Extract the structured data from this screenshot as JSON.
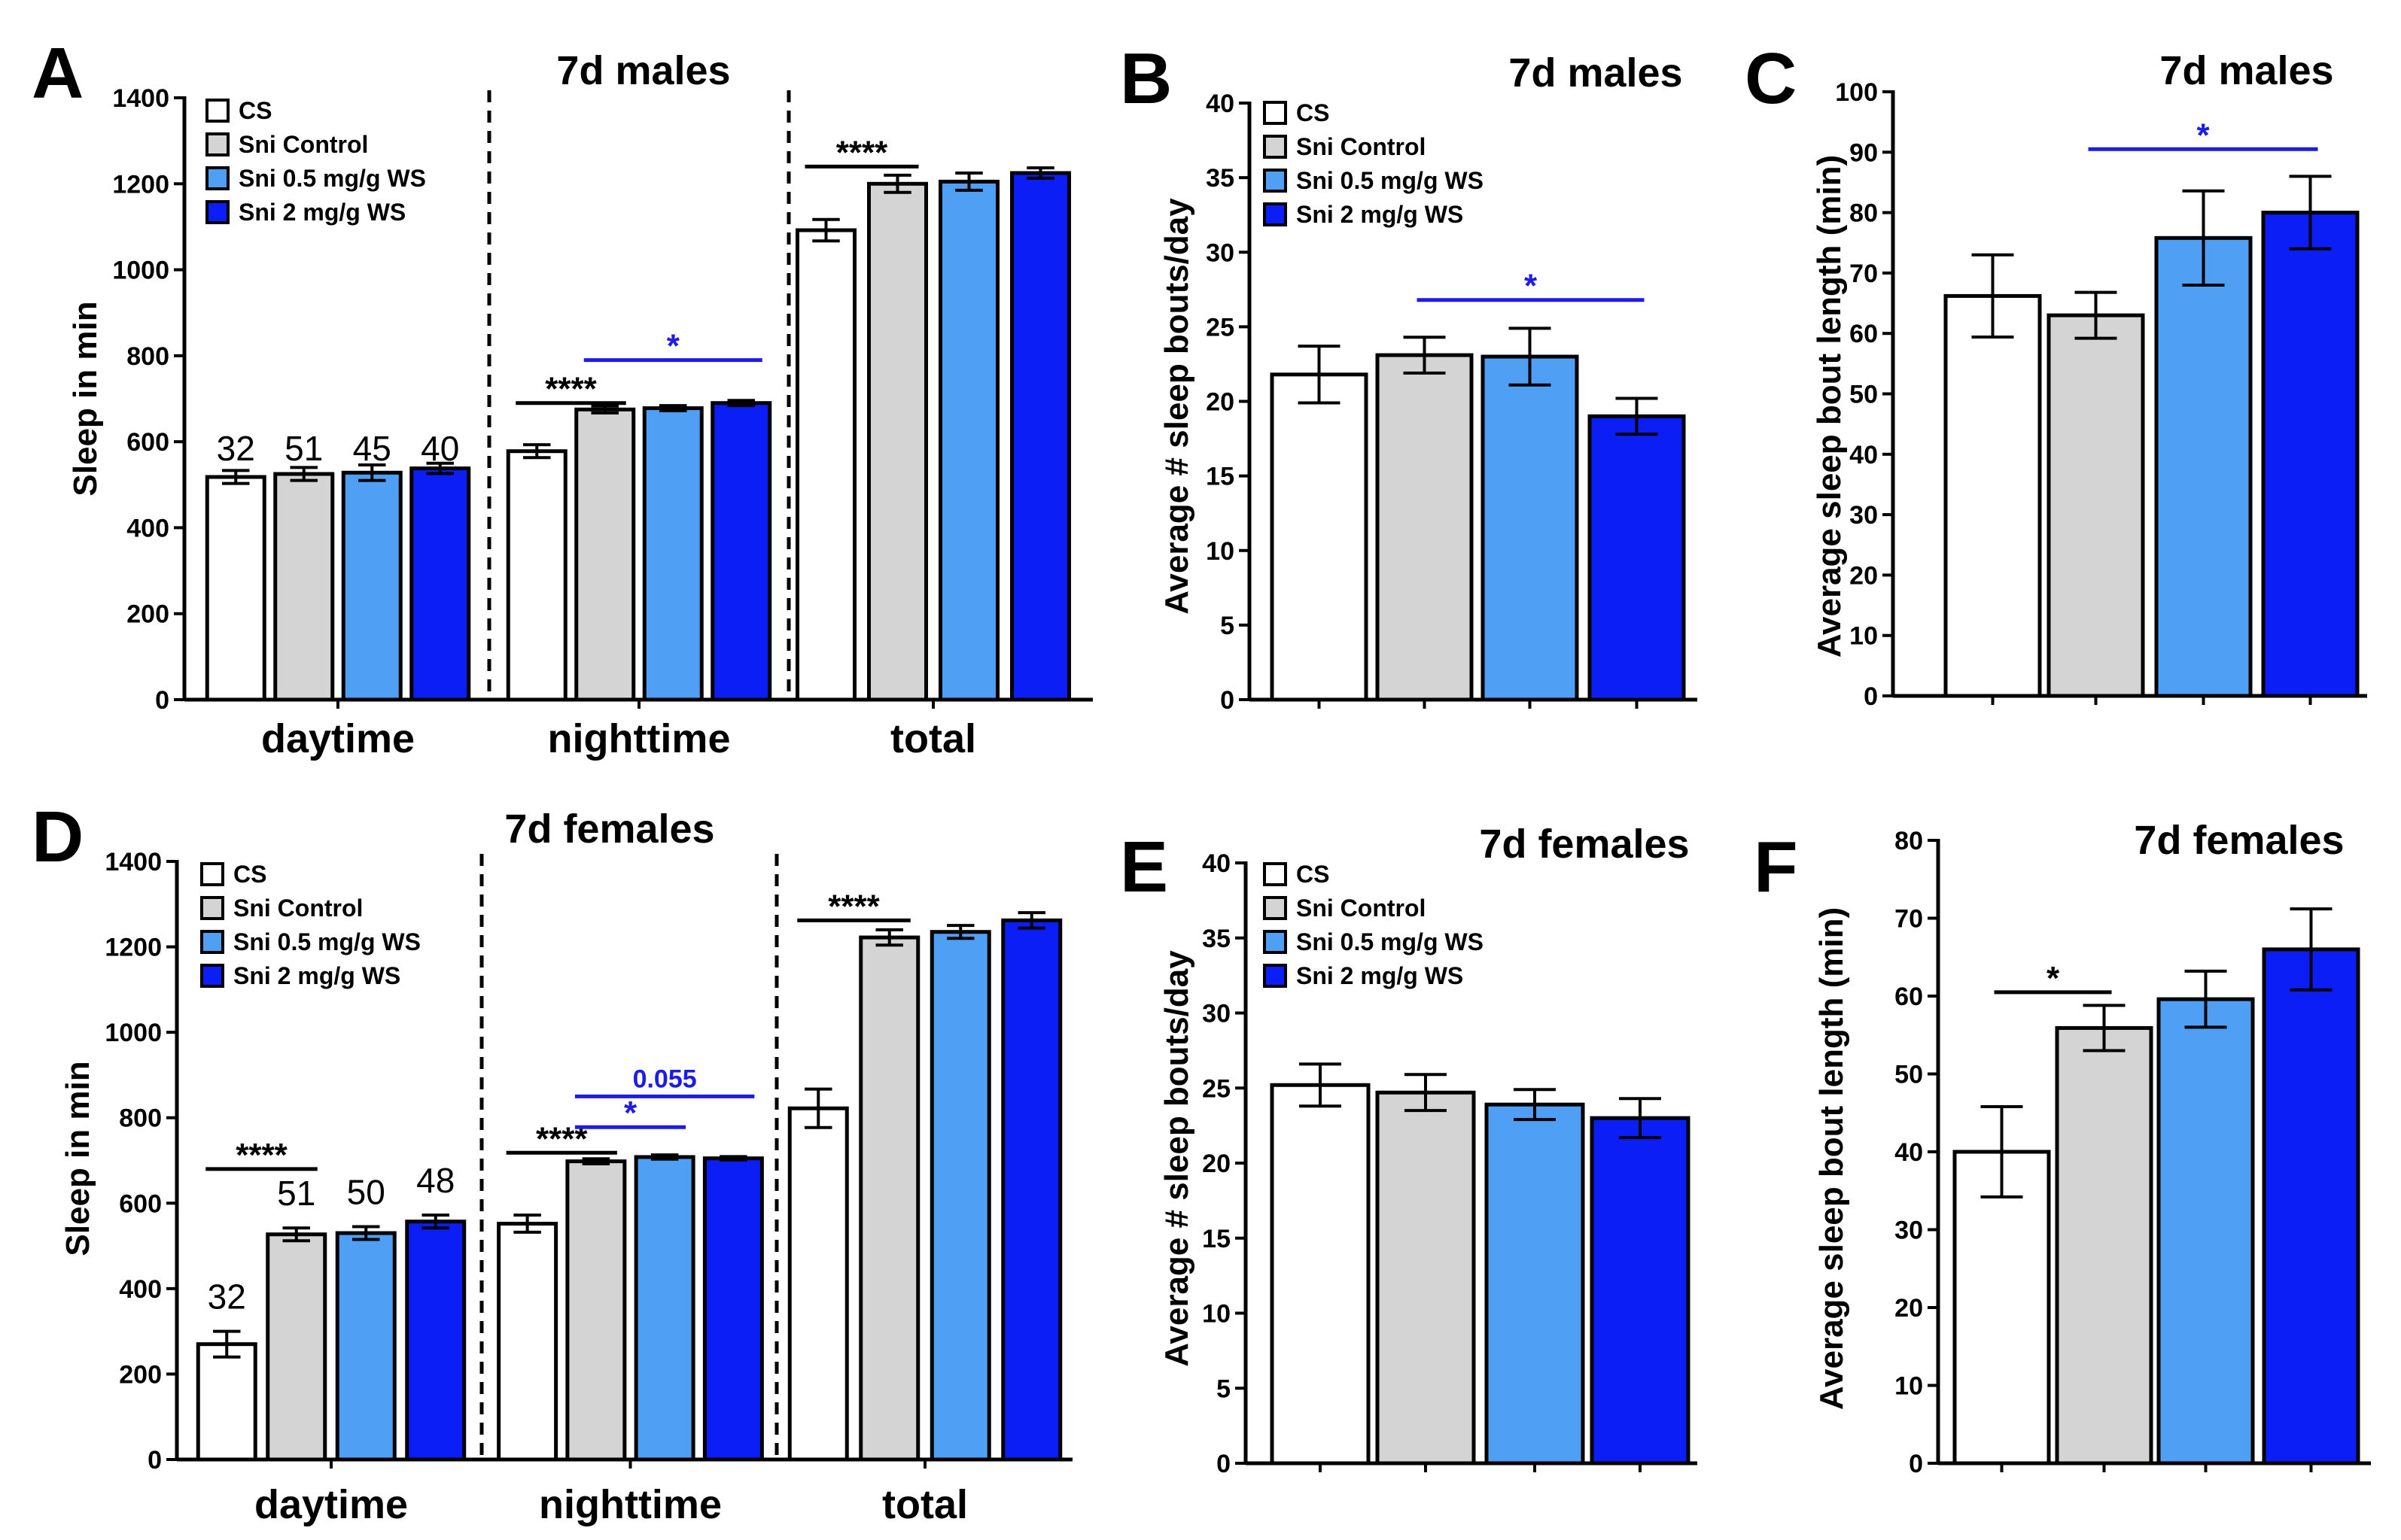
{
  "colors": {
    "CS": "#ffffff",
    "Sni Control": "#d4d4d4",
    "Sni 0.5 mg/g WS": "#4f9ff5",
    "Sni 2 mg/g WS": "#0b1ef5",
    "sig_black": "#000000",
    "sig_blue": "#1c1ce6"
  },
  "chart_data": [
    {
      "panel": "A",
      "type": "bar",
      "title": "7d males",
      "ylabel": "Sleep in min",
      "xlabel": "",
      "ylim": [
        0,
        1400
      ],
      "yticks": [
        "0",
        "200",
        "400",
        "600",
        "800",
        "1000",
        "1200",
        "1400"
      ],
      "legend": [
        "CS",
        "Sni Control",
        "Sni 0.5 mg/g WS",
        "Sni 2 mg/g WS"
      ],
      "categories": [
        "daytime",
        "nighttime",
        "total"
      ],
      "series": [
        {
          "name": "CS",
          "values": [
            518,
            578,
            1092
          ],
          "errors": [
            15,
            15,
            25
          ]
        },
        {
          "name": "Sni Control",
          "values": [
            525,
            675,
            1200
          ],
          "errors": [
            15,
            8,
            20
          ]
        },
        {
          "name": "Sni 0.5 mg/g WS",
          "values": [
            528,
            678,
            1205
          ],
          "errors": [
            18,
            6,
            20
          ]
        },
        {
          "name": "Sni 2 mg/g WS",
          "values": [
            538,
            690,
            1225
          ],
          "errors": [
            12,
            6,
            12
          ]
        }
      ],
      "n_labels": [
        "32",
        "51",
        "45",
        "40"
      ],
      "significance": [
        {
          "label": "****",
          "group": 1,
          "from": 0,
          "to": 1,
          "y": 690,
          "color": "black"
        },
        {
          "label": "*",
          "group": 1,
          "from": 1,
          "to": 3,
          "y": 790,
          "color": "blue"
        },
        {
          "label": "****",
          "group": 2,
          "from": 0,
          "to": 1,
          "y": 1240,
          "color": "black"
        }
      ]
    },
    {
      "panel": "B",
      "type": "bar",
      "title": "7d males",
      "ylabel": "Average # sleep bouts/day",
      "ylim": [
        0,
        40
      ],
      "yticks": [
        "0",
        "5",
        "10",
        "15",
        "20",
        "25",
        "30",
        "35",
        "40"
      ],
      "legend": [
        "CS",
        "Sni Control",
        "Sni 0.5 mg/g WS",
        "Sni 2 mg/g WS"
      ],
      "categories": [
        "CS",
        "Sni Control",
        "Sni 0.5 mg/g WS",
        "Sni 2 mg/g WS"
      ],
      "values": [
        21.8,
        23.1,
        23.0,
        19.0
      ],
      "errors": [
        1.9,
        1.2,
        1.9,
        1.2
      ],
      "significance": [
        {
          "label": "*",
          "from": 1,
          "to": 3,
          "y": 26.8,
          "color": "blue"
        }
      ]
    },
    {
      "panel": "C",
      "type": "bar",
      "title": "7d males",
      "ylabel": "Average sleep bout length (min)",
      "ylim": [
        0,
        100
      ],
      "yticks": [
        "0",
        "10",
        "20",
        "30",
        "40",
        "50",
        "60",
        "70",
        "80",
        "90",
        "100"
      ],
      "categories": [
        "CS",
        "Sni Control",
        "Sni 0.5 mg/g WS",
        "Sni 2 mg/g WS"
      ],
      "values": [
        66.2,
        63.0,
        75.8,
        80.0
      ],
      "errors": [
        6.8,
        3.8,
        7.8,
        6.0
      ],
      "significance": [
        {
          "label": "*",
          "from": 1,
          "to": 3,
          "y": 90.5,
          "color": "blue"
        }
      ]
    },
    {
      "panel": "D",
      "type": "bar",
      "title": "7d females",
      "ylabel": "Sleep in min",
      "ylim": [
        0,
        1400
      ],
      "yticks": [
        "0",
        "200",
        "400",
        "600",
        "800",
        "1000",
        "1200",
        "1400"
      ],
      "legend": [
        "CS",
        "Sni Control",
        "Sni 0.5 mg/g WS",
        "Sni 2 mg/g WS"
      ],
      "categories": [
        "daytime",
        "nighttime",
        "total"
      ],
      "series": [
        {
          "name": "CS",
          "values": [
            270,
            552,
            822
          ],
          "errors": [
            30,
            20,
            45
          ]
        },
        {
          "name": "Sni Control",
          "values": [
            527,
            698,
            1222
          ],
          "errors": [
            15,
            6,
            18
          ]
        },
        {
          "name": "Sni 0.5 mg/g WS",
          "values": [
            530,
            708,
            1235
          ],
          "errors": [
            15,
            5,
            15
          ]
        },
        {
          "name": "Sni 2 mg/g WS",
          "values": [
            557,
            705,
            1262
          ],
          "errors": [
            15,
            4,
            18
          ]
        }
      ],
      "n_labels": [
        "32",
        "51",
        "50",
        "48"
      ],
      "significance": [
        {
          "label": "****",
          "group": 0,
          "from": 0,
          "to": 1,
          "y": 680,
          "color": "black"
        },
        {
          "label": "****",
          "group": 1,
          "from": 0,
          "to": 1,
          "y": 718,
          "color": "black"
        },
        {
          "label": "*",
          "group": 1,
          "from": 1,
          "to": 2,
          "y": 778,
          "color": "blue"
        },
        {
          "label": "0.055",
          "group": 1,
          "from": 1,
          "to": 3,
          "y": 850,
          "color": "blue"
        },
        {
          "label": "****",
          "group": 2,
          "from": 0,
          "to": 1,
          "y": 1262,
          "color": "black"
        }
      ]
    },
    {
      "panel": "E",
      "type": "bar",
      "title": "7d females",
      "ylabel": "Average # sleep bouts/day",
      "ylim": [
        0,
        40
      ],
      "yticks": [
        "0",
        "5",
        "10",
        "15",
        "20",
        "25",
        "30",
        "35",
        "40"
      ],
      "legend": [
        "CS",
        "Sni Control",
        "Sni 0.5 mg/g WS",
        "Sni 2 mg/g WS"
      ],
      "categories": [
        "CS",
        "Sni Control",
        "Sni 0.5 mg/g WS",
        "Sni 2 mg/g WS"
      ],
      "values": [
        25.2,
        24.7,
        23.9,
        23.0
      ],
      "errors": [
        1.4,
        1.2,
        1.0,
        1.3
      ],
      "significance": []
    },
    {
      "panel": "F",
      "type": "bar",
      "title": "7d females",
      "ylabel": "Average sleep bout length (min)",
      "ylim": [
        0,
        80
      ],
      "yticks": [
        "0",
        "10",
        "20",
        "30",
        "40",
        "50",
        "60",
        "70",
        "80"
      ],
      "categories": [
        "CS",
        "Sni Control",
        "Sni 0.5 mg/g WS",
        "Sni 2 mg/g WS"
      ],
      "values": [
        40.0,
        55.9,
        59.6,
        66.0
      ],
      "errors": [
        5.8,
        2.9,
        3.6,
        5.2
      ],
      "significance": [
        {
          "label": "*",
          "from": 0,
          "to": 1,
          "y": 60.5,
          "color": "black"
        }
      ]
    }
  ]
}
